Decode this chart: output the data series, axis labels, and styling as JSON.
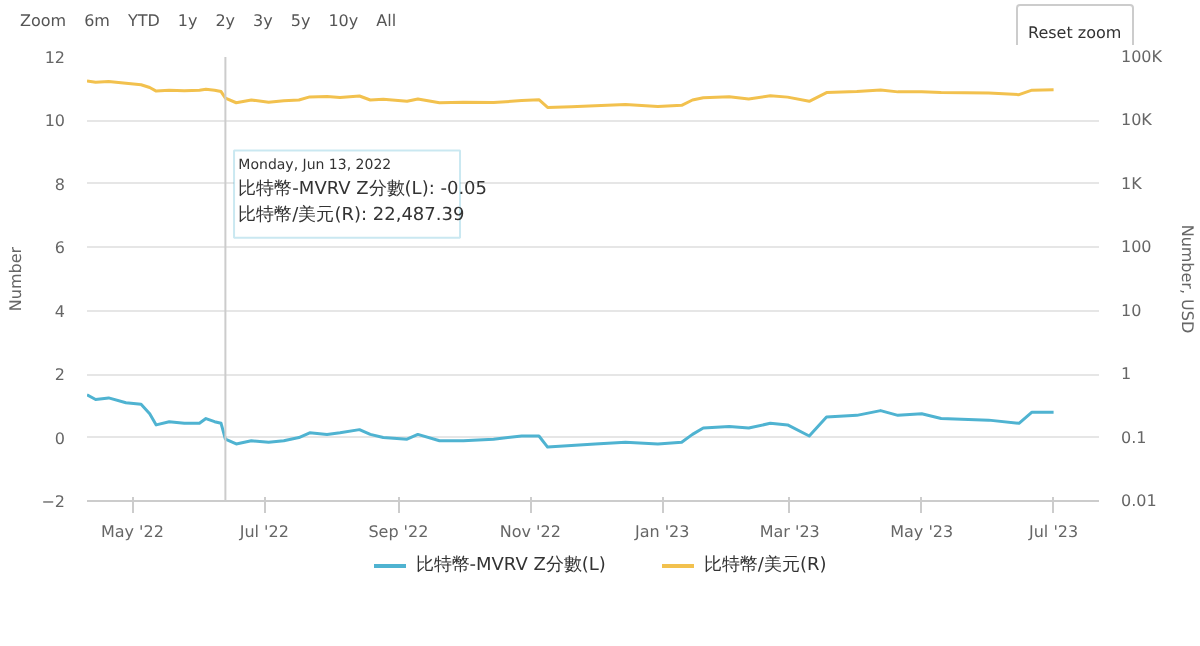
{
  "chart_data": {
    "type": "line",
    "xlabel": null,
    "ylabel": "Number",
    "y2label": "Number, USD",
    "xlim": [
      "2022-04-10",
      "2023-07-22"
    ],
    "xticks": [
      {
        "value": "2022-05-01",
        "label": "May '22"
      },
      {
        "value": "2022-07-01",
        "label": "Jul '22"
      },
      {
        "value": "2022-09-01",
        "label": "Sep '22"
      },
      {
        "value": "2022-11-01",
        "label": "Nov '22"
      },
      {
        "value": "2023-01-01",
        "label": "Jan '23"
      },
      {
        "value": "2023-03-01",
        "label": "Mar '23"
      },
      {
        "value": "2023-05-01",
        "label": "May '23"
      },
      {
        "value": "2023-07-01",
        "label": "Jul '23"
      }
    ],
    "ylim": [
      -2,
      12
    ],
    "yticks": [
      -2,
      0,
      2,
      4,
      6,
      8,
      10,
      12
    ],
    "y2lim": [
      0.01,
      100000
    ],
    "y2ticks": [
      {
        "value": 0.01,
        "label": "0.01"
      },
      {
        "value": 0.1,
        "label": "0.1"
      },
      {
        "value": 1,
        "label": "1"
      },
      {
        "value": 10,
        "label": "10"
      },
      {
        "value": 100,
        "label": "100"
      },
      {
        "value": 1000,
        "label": "1K"
      },
      {
        "value": 10000,
        "label": "10K"
      },
      {
        "value": 100000,
        "label": "100K"
      }
    ],
    "log": "y2",
    "grid": "y",
    "legend": "bottom",
    "marker": "none",
    "line_style": "solid",
    "x": [
      "2022-04-10",
      "2022-04-14",
      "2022-04-20",
      "2022-04-28",
      "2022-05-05",
      "2022-05-09",
      "2022-05-12",
      "2022-05-18",
      "2022-05-25",
      "2022-06-01",
      "2022-06-04",
      "2022-06-08",
      "2022-06-11",
      "2022-06-13",
      "2022-06-18",
      "2022-06-25",
      "2022-07-03",
      "2022-07-10",
      "2022-07-17",
      "2022-07-22",
      "2022-07-30",
      "2022-08-05",
      "2022-08-14",
      "2022-08-19",
      "2022-08-25",
      "2022-09-05",
      "2022-09-10",
      "2022-09-20",
      "2022-10-01",
      "2022-10-15",
      "2022-10-28",
      "2022-11-05",
      "2022-11-09",
      "2022-11-20",
      "2022-12-01",
      "2022-12-15",
      "2022-12-30",
      "2023-01-10",
      "2023-01-15",
      "2023-01-20",
      "2023-02-01",
      "2023-02-10",
      "2023-02-20",
      "2023-02-28",
      "2023-03-10",
      "2023-03-18",
      "2023-04-01",
      "2023-04-12",
      "2023-04-20",
      "2023-05-01",
      "2023-05-10",
      "2023-06-01",
      "2023-06-15",
      "2023-06-21",
      "2023-07-01"
    ],
    "series": [
      {
        "name": "比特幣-MVRV Z分數(L)",
        "color": "#4fb3d1",
        "values": [
          1.35,
          1.2,
          1.25,
          1.1,
          1.05,
          0.75,
          0.4,
          0.5,
          0.45,
          0.45,
          0.6,
          0.5,
          0.45,
          -0.05,
          -0.2,
          -0.1,
          -0.15,
          -0.1,
          0.0,
          0.15,
          0.1,
          0.15,
          0.25,
          0.1,
          0.0,
          -0.05,
          0.1,
          -0.1,
          -0.1,
          -0.05,
          0.05,
          0.05,
          -0.3,
          -0.25,
          -0.2,
          -0.15,
          -0.2,
          -0.15,
          0.1,
          0.3,
          0.35,
          0.3,
          0.45,
          0.4,
          0.05,
          0.65,
          0.7,
          0.85,
          0.7,
          0.75,
          0.6,
          0.55,
          0.45,
          0.8,
          0.8
        ]
      },
      {
        "name": "比特幣/美元(R)",
        "color": "#f2c14e",
        "axis": "y2",
        "values": [
          42000,
          40000,
          41000,
          38500,
          36500,
          33000,
          29000,
          30000,
          29500,
          30000,
          31000,
          30000,
          28500,
          22487.39,
          19000,
          21000,
          19300,
          20500,
          21000,
          23500,
          23800,
          23000,
          24300,
          21000,
          21500,
          20000,
          21800,
          19000,
          19300,
          19100,
          20600,
          21200,
          16000,
          16500,
          17000,
          17800,
          16600,
          17300,
          21000,
          22800,
          23700,
          21800,
          24500,
          23300,
          20000,
          27500,
          28500,
          30300,
          28200,
          28400,
          27600,
          27000,
          25500,
          30000,
          30500
        ]
      }
    ],
    "annotations": [
      "Zoom",
      "6m",
      "YTD",
      "1y",
      "2y",
      "3y",
      "5y",
      "10y",
      "All",
      "Reset zoom",
      {
        "text": "Monday, Jun 13, 2022",
        "x": "2022-06-13"
      },
      "比特幣-MVRV Z分數(L): -0.05",
      "比特幣/美元(R): 22,487.39"
    ],
    "ref_lines": [
      {
        "axis": "x",
        "value": "2022-06-13",
        "label": null,
        "color": "#cccccc"
      }
    ]
  }
}
